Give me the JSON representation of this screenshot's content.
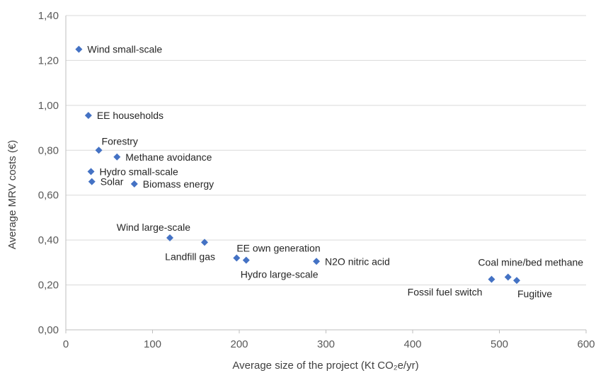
{
  "chart_data": {
    "type": "scatter",
    "title": "",
    "xlabel": "Average size of the project (Kt CO₂e/yr)",
    "ylabel": "Average MRV costs (€)",
    "xlim": [
      0,
      600
    ],
    "ylim": [
      0,
      1.4
    ],
    "x_ticks": [
      "0",
      "100",
      "200",
      "300",
      "400",
      "500",
      "600"
    ],
    "y_ticks": [
      "0,00",
      "0,20",
      "0,40",
      "0,60",
      "0,80",
      "1,00",
      "1,20",
      "1,40"
    ],
    "grid": "horizontal",
    "marker_color": "#4472c4",
    "points": [
      {
        "label": "Wind small-scale",
        "x": 15,
        "y": 1.25,
        "label_pos": "right"
      },
      {
        "label": "EE households",
        "x": 26,
        "y": 0.955,
        "label_pos": "right"
      },
      {
        "label": "Forestry",
        "x": 38,
        "y": 0.8,
        "label_pos": "above-right"
      },
      {
        "label": "Methane avoidance",
        "x": 59,
        "y": 0.77,
        "label_pos": "right"
      },
      {
        "label": "Hydro small-scale",
        "x": 29,
        "y": 0.705,
        "label_pos": "right"
      },
      {
        "label": "Solar",
        "x": 30,
        "y": 0.66,
        "label_pos": "right"
      },
      {
        "label": "Biomass energy",
        "x": 79,
        "y": 0.65,
        "label_pos": "right"
      },
      {
        "label": "Wind large-scale",
        "x": 120,
        "y": 0.41,
        "label_pos": "above-left"
      },
      {
        "label": "Landfill gas",
        "x": 160,
        "y": 0.39,
        "label_pos": "below-left"
      },
      {
        "label": "EE own generation",
        "x": 197,
        "y": 0.32,
        "label_pos": "above-right"
      },
      {
        "label": "Hydro large-scale",
        "x": 208,
        "y": 0.31,
        "label_pos": "below-right"
      },
      {
        "label": "N2O nitric acid",
        "x": 289,
        "y": 0.305,
        "label_pos": "right"
      },
      {
        "label": "Fossil fuel switch",
        "x": 491,
        "y": 0.225,
        "label_pos": "below-left"
      },
      {
        "label": "Coal mine/bed methane",
        "x": 510,
        "y": 0.235,
        "label_pos": "above"
      },
      {
        "label": "Fugitive",
        "x": 520,
        "y": 0.22,
        "label_pos": "below-right"
      }
    ]
  }
}
